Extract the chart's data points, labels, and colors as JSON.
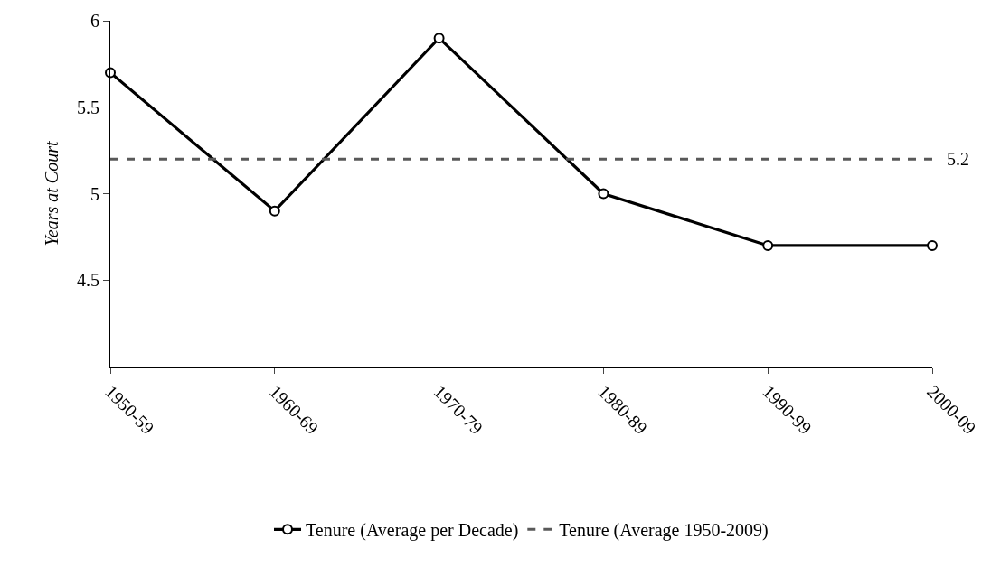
{
  "chart_data": {
    "type": "line",
    "ylabel": "Years at Court",
    "categories": [
      "1950-59",
      "1960-69",
      "1970-79",
      "1980-89",
      "1990-99",
      "2000-09"
    ],
    "series": [
      {
        "name": "Tenure (Average per Decade)",
        "color": "#000000",
        "values": [
          5.7,
          4.9,
          5.9,
          5.0,
          4.7,
          4.7
        ],
        "marker": "circle",
        "line_style": "solid"
      },
      {
        "name": "Tenure (Average 1950-2009)",
        "color": "#595959",
        "values": [
          5.2,
          5.2,
          5.2,
          5.2,
          5.2,
          5.2
        ],
        "marker": "none",
        "line_style": "dashed"
      }
    ],
    "annotations": [
      {
        "text": "5.2",
        "x": "2000-09",
        "y": 5.2
      }
    ],
    "ylim": [
      4,
      6
    ],
    "yticks": [
      {
        "value": 4,
        "label": null
      },
      4.5,
      5,
      5.5,
      6
    ],
    "legend": "bottom"
  }
}
